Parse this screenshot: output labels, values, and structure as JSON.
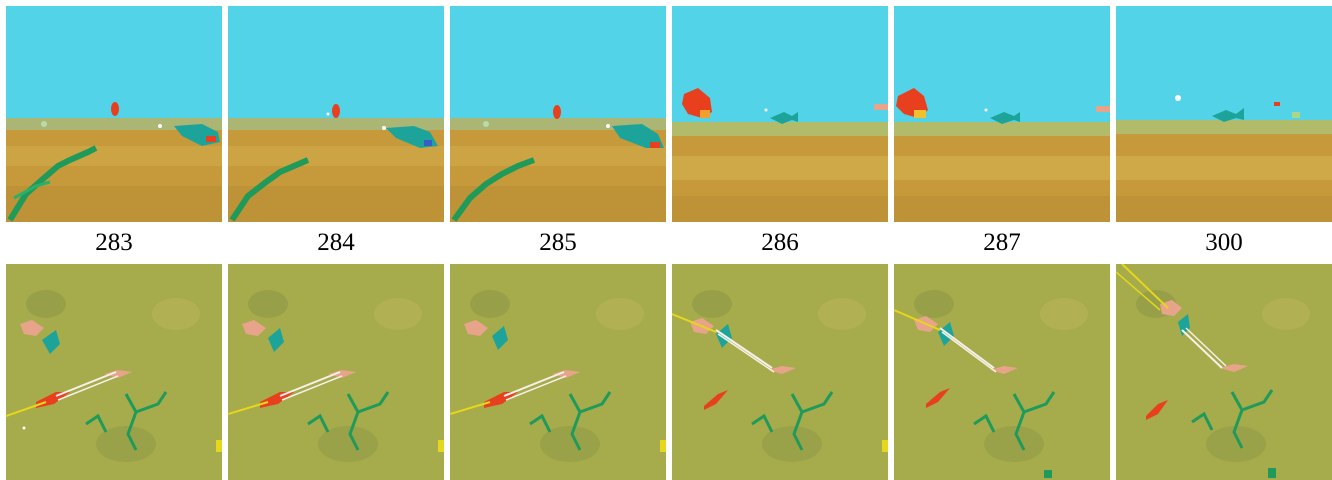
{
  "colors": {
    "water_sky": "#53d3e8",
    "sand": "#c69a3a",
    "sand_light": "#d7b653",
    "seabed_topdown": "#a6ab4c",
    "red_creature": "#e8401f",
    "teal_fish": "#1da49a",
    "green_plant": "#1f9a5a",
    "pink_creature": "#e8a48a",
    "rope_white": "#f5f0e8",
    "rope_yellow": "#e6d61c"
  },
  "frame_labels": [
    "283",
    "284",
    "285",
    "286",
    "287",
    "300"
  ],
  "row_top_icons": [
    "underwater-view",
    "underwater-view",
    "underwater-view",
    "underwater-view",
    "underwater-view",
    "underwater-view"
  ],
  "row_bottom_icons": [
    "topdown-view",
    "topdown-view",
    "topdown-view",
    "topdown-view",
    "topdown-view",
    "topdown-view"
  ]
}
